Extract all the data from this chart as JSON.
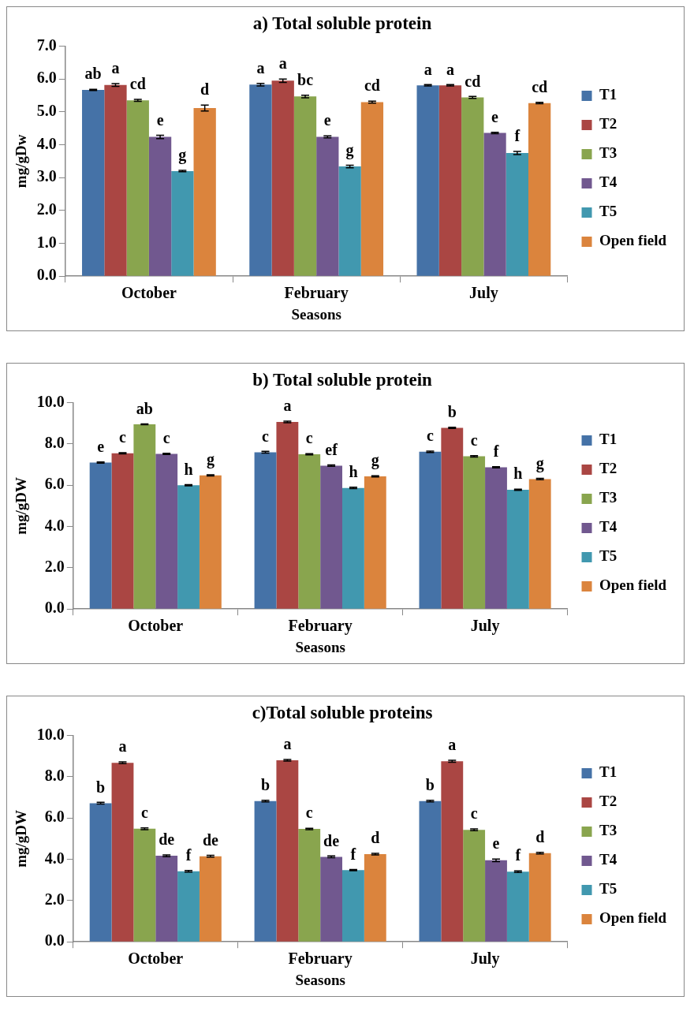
{
  "chart_data": [
    {
      "type": "bar",
      "title": "a) Total soluble protein",
      "xlabel": "Seasons",
      "ylabel": "mg/gDw",
      "categories": [
        "October",
        "February",
        "July"
      ],
      "ylim": [
        0,
        7
      ],
      "yticks": [
        {
          "value": 0,
          "label": "0.0"
        },
        {
          "value": 1,
          "label": "1.0"
        },
        {
          "value": 2,
          "label": "2.0"
        },
        {
          "value": 3,
          "label": "3.0"
        },
        {
          "value": 4,
          "label": "4.0"
        },
        {
          "value": 5,
          "label": "5.0"
        },
        {
          "value": 6,
          "label": "6.0"
        },
        {
          "value": 7,
          "label": "7.0"
        }
      ],
      "grid": false,
      "legend": "right",
      "series": [
        {
          "name": "T1",
          "color": "#4572a7",
          "values": [
            5.67,
            5.83,
            5.81
          ],
          "errors": [
            0.02,
            0.04,
            0.02
          ],
          "value_labels": [
            "ab",
            "a",
            "a"
          ]
        },
        {
          "name": "T2",
          "color": "#aa4643",
          "values": [
            5.82,
            5.95,
            5.81
          ],
          "errors": [
            0.04,
            0.05,
            0.02
          ],
          "value_labels": [
            "a",
            "a",
            "a"
          ]
        },
        {
          "name": "T3",
          "color": "#89a54e",
          "values": [
            5.35,
            5.47,
            5.44
          ],
          "errors": [
            0.03,
            0.04,
            0.03
          ],
          "value_labels": [
            "cd",
            "bc",
            "cd"
          ]
        },
        {
          "name": "T4",
          "color": "#71588f",
          "values": [
            4.24,
            4.24,
            4.36
          ],
          "errors": [
            0.05,
            0.03,
            0.02
          ],
          "value_labels": [
            "e",
            "e",
            "e"
          ]
        },
        {
          "name": "T5",
          "color": "#4198af",
          "values": [
            3.2,
            3.34,
            3.75
          ],
          "errors": [
            0.02,
            0.04,
            0.05
          ],
          "value_labels": [
            "g",
            "g",
            "f"
          ]
        },
        {
          "name": "Open field",
          "color": "#db843d",
          "values": [
            5.12,
            5.3,
            5.27
          ],
          "errors": [
            0.09,
            0.03,
            0.02
          ],
          "value_labels": [
            "d",
            "cd",
            "cd"
          ]
        }
      ]
    },
    {
      "type": "bar",
      "title": "b) Total soluble protein",
      "xlabel": "Seasons",
      "ylabel": "mg/gDW",
      "categories": [
        "October",
        "February",
        "July"
      ],
      "ylim": [
        0,
        10
      ],
      "yticks": [
        {
          "value": 0,
          "label": "0.0"
        },
        {
          "value": 2,
          "label": "2.0"
        },
        {
          "value": 4,
          "label": "4.0"
        },
        {
          "value": 6,
          "label": "6.0"
        },
        {
          "value": 8,
          "label": "8.0"
        },
        {
          "value": 10,
          "label": "10.0"
        }
      ],
      "grid": false,
      "legend": "right",
      "series": [
        {
          "name": "T1",
          "color": "#4572a7",
          "values": [
            7.1,
            7.6,
            7.62
          ],
          "errors": [
            0.03,
            0.04,
            0.03
          ],
          "value_labels": [
            "e",
            "c",
            "c"
          ]
        },
        {
          "name": "T2",
          "color": "#aa4643",
          "values": [
            7.55,
            9.07,
            8.78
          ],
          "errors": [
            0.03,
            0.04,
            0.03
          ],
          "value_labels": [
            "c",
            "a",
            "b"
          ]
        },
        {
          "name": "T3",
          "color": "#89a54e",
          "values": [
            8.95,
            7.5,
            7.4
          ],
          "errors": [
            0.02,
            0.03,
            0.03
          ],
          "value_labels": [
            "ab",
            "c",
            "c"
          ]
        },
        {
          "name": "T4",
          "color": "#71588f",
          "values": [
            7.52,
            6.95,
            6.87
          ],
          "errors": [
            0.03,
            0.03,
            0.03
          ],
          "value_labels": [
            "c",
            "ef",
            "f"
          ]
        },
        {
          "name": "T5",
          "color": "#4198af",
          "values": [
            6.0,
            5.87,
            5.78
          ],
          "errors": [
            0.03,
            0.03,
            0.03
          ],
          "value_labels": [
            "h",
            "h",
            "h"
          ]
        },
        {
          "name": "Open field",
          "color": "#db843d",
          "values": [
            6.48,
            6.43,
            6.3
          ],
          "errors": [
            0.03,
            0.03,
            0.03
          ],
          "value_labels": [
            "g",
            "g",
            "g"
          ]
        }
      ]
    },
    {
      "type": "bar",
      "title": "c)Total soluble proteins",
      "xlabel": "Seasons",
      "ylabel": "mg/gDW",
      "categories": [
        "October",
        "February",
        "July"
      ],
      "ylim": [
        0,
        10
      ],
      "yticks": [
        {
          "value": 0,
          "label": "0.0"
        },
        {
          "value": 2,
          "label": "2.0"
        },
        {
          "value": 4,
          "label": "4.0"
        },
        {
          "value": 6,
          "label": "6.0"
        },
        {
          "value": 8,
          "label": "8.0"
        },
        {
          "value": 10,
          "label": "10.0"
        }
      ],
      "grid": false,
      "legend": "right",
      "series": [
        {
          "name": "T1",
          "color": "#4572a7",
          "values": [
            6.72,
            6.82,
            6.82
          ],
          "errors": [
            0.04,
            0.04,
            0.04
          ],
          "value_labels": [
            "b",
            "b",
            "b"
          ]
        },
        {
          "name": "T2",
          "color": "#aa4643",
          "values": [
            8.68,
            8.8,
            8.75
          ],
          "errors": [
            0.04,
            0.04,
            0.05
          ],
          "value_labels": [
            "a",
            "a",
            "a"
          ]
        },
        {
          "name": "T3",
          "color": "#89a54e",
          "values": [
            5.48,
            5.47,
            5.43
          ],
          "errors": [
            0.04,
            0.03,
            0.04
          ],
          "value_labels": [
            "c",
            "c",
            "c"
          ]
        },
        {
          "name": "T4",
          "color": "#71588f",
          "values": [
            4.17,
            4.12,
            3.95
          ],
          "errors": [
            0.04,
            0.04,
            0.06
          ],
          "value_labels": [
            "de",
            "de",
            "e"
          ]
        },
        {
          "name": "T5",
          "color": "#4198af",
          "values": [
            3.42,
            3.48,
            3.4
          ],
          "errors": [
            0.04,
            0.03,
            0.04
          ],
          "value_labels": [
            "f",
            "f",
            "f"
          ]
        },
        {
          "name": "Open field",
          "color": "#db843d",
          "values": [
            4.15,
            4.25,
            4.3
          ],
          "errors": [
            0.04,
            0.04,
            0.04
          ],
          "value_labels": [
            "de",
            "d",
            "d"
          ]
        }
      ]
    }
  ]
}
